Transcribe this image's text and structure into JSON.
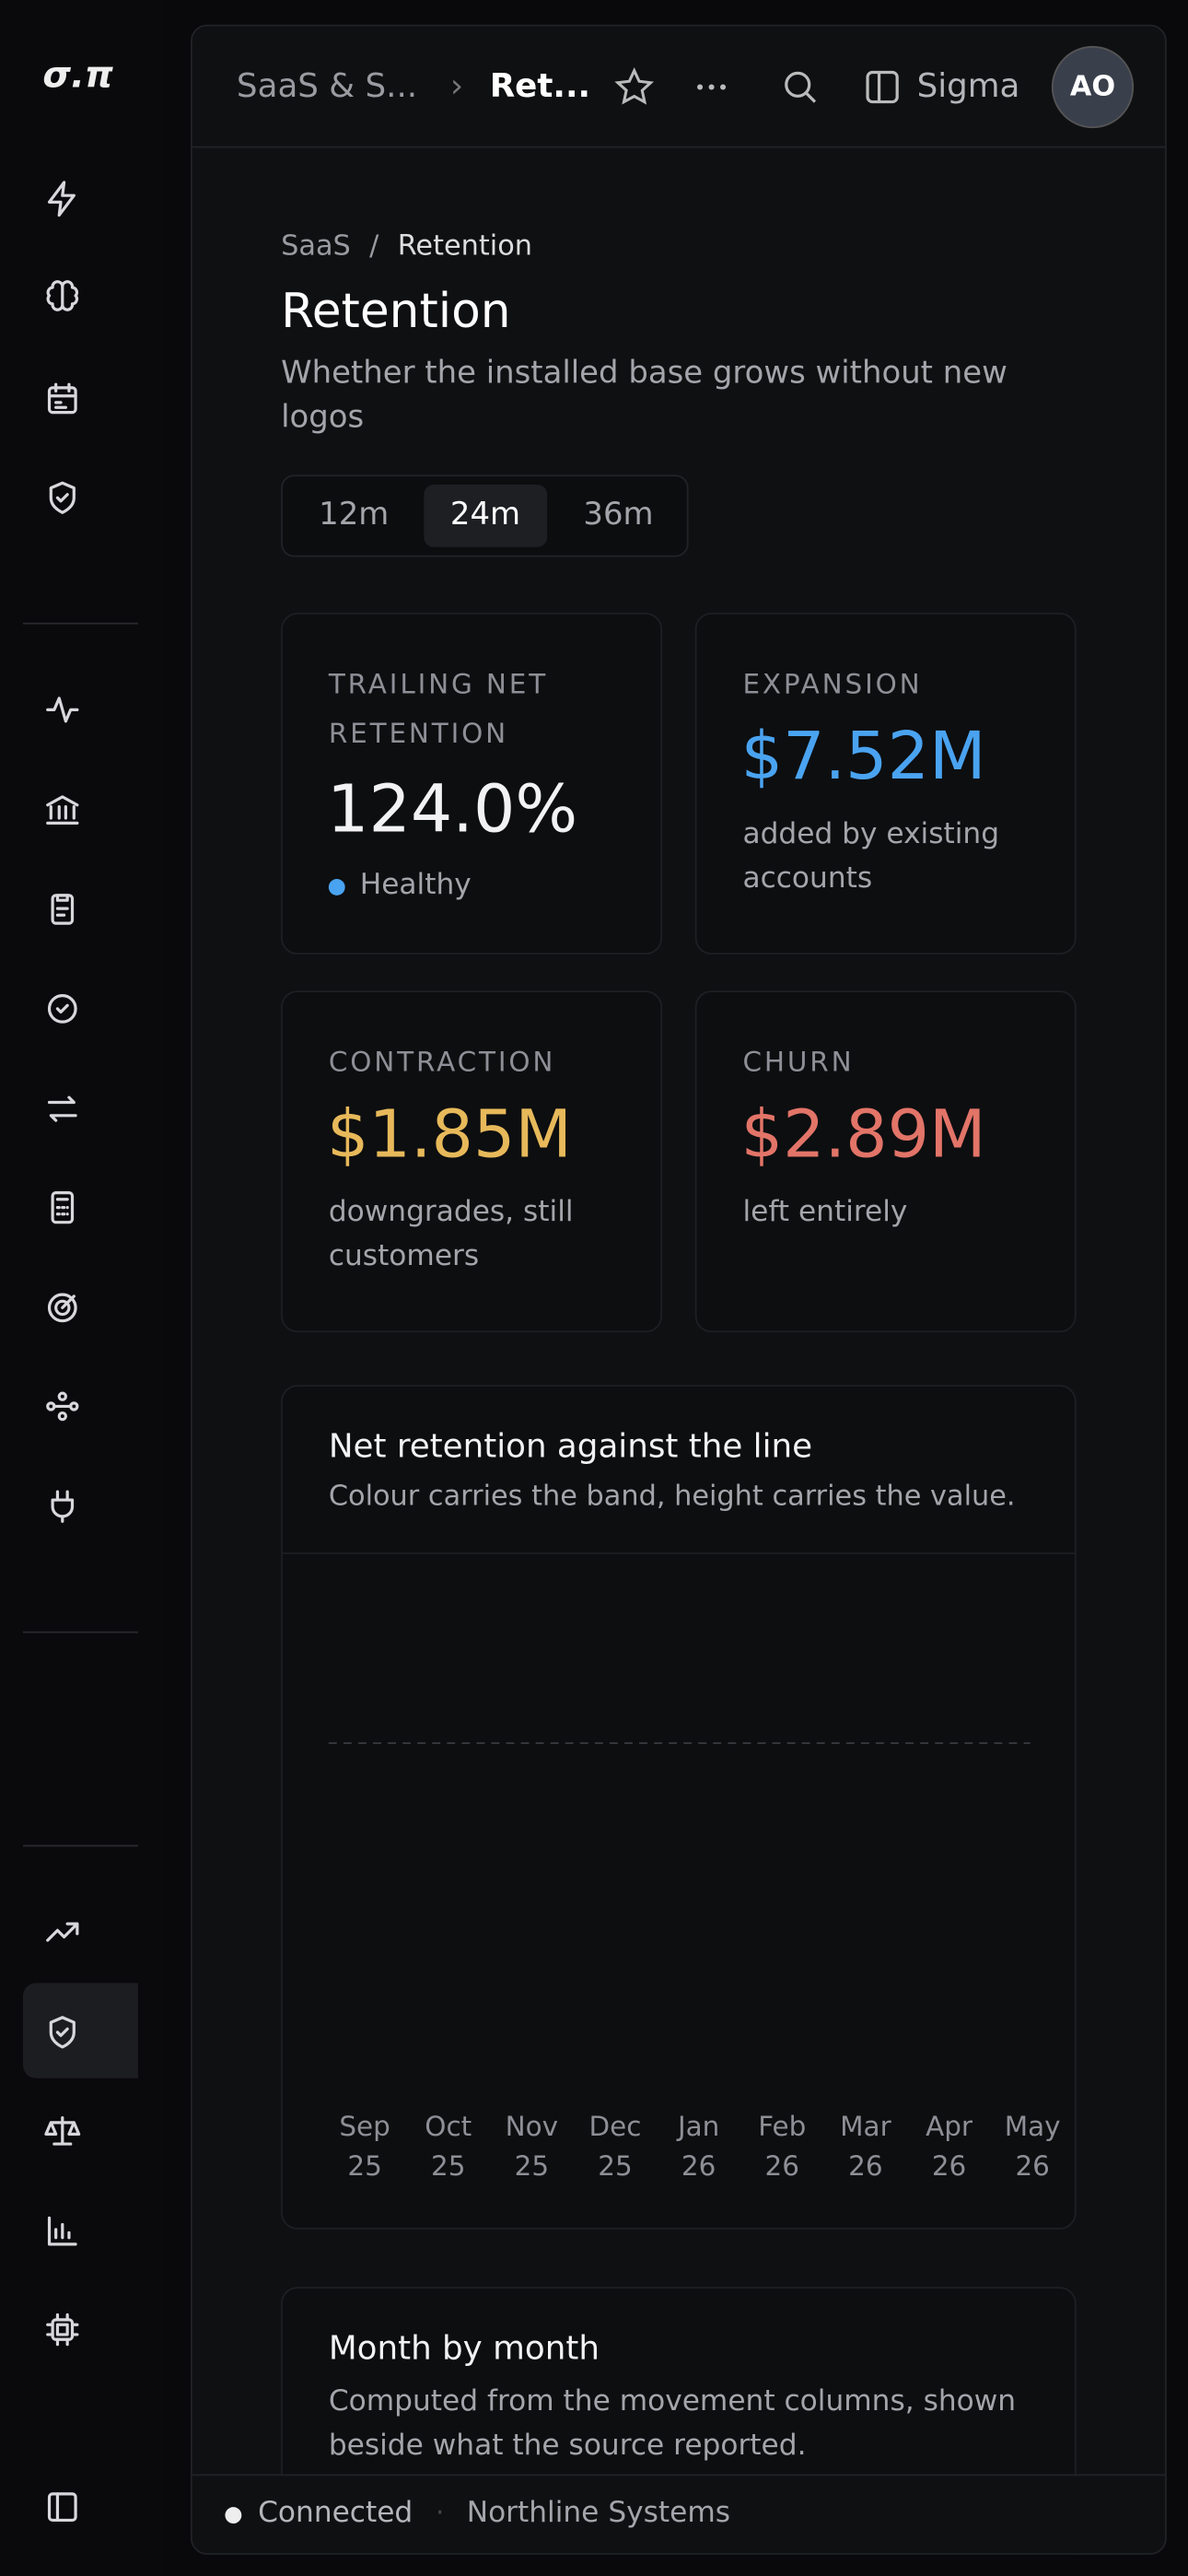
{
  "sidebar": {
    "logo": "σ.π"
  },
  "topbar": {
    "crumb_parent": "SaaS & S...",
    "crumb_current": "Ret...",
    "workspace": "Sigma",
    "avatar": "AO"
  },
  "header": {
    "breadcrumb": [
      "SaaS",
      "/",
      "Retention"
    ],
    "title": "Retention",
    "subtitle": "Whether the installed base grows without new logos"
  },
  "range": {
    "options": [
      "12m",
      "24m",
      "36m"
    ],
    "selected": "24m"
  },
  "cards": [
    {
      "label": "TRAILING NET RETENTION",
      "value": "124.0%",
      "note": "Healthy",
      "color": "#f2f2f4"
    },
    {
      "label": "EXPANSION",
      "value": "$7.52M",
      "note": "added by existing accounts",
      "color": "#4aa3f0"
    },
    {
      "label": "CONTRACTION",
      "value": "$1.85M",
      "note": "downgrades, still customers",
      "color": "#e7b95a"
    },
    {
      "label": "CHURN",
      "value": "$2.89M",
      "note": "left entirely",
      "color": "#e27468"
    }
  ],
  "chart_data": {
    "type": "bar",
    "title": "Net retention against the line",
    "subtitle": "Colour carries the band, height carries the value.",
    "categories": [
      {
        "month": "Sep",
        "year": "25"
      },
      {
        "month": "Oct",
        "year": "25"
      },
      {
        "month": "Nov",
        "year": "25"
      },
      {
        "month": "Dec",
        "year": "25"
      },
      {
        "month": "Jan",
        "year": "26"
      },
      {
        "month": "Feb",
        "year": "26"
      },
      {
        "month": "Mar",
        "year": "26"
      },
      {
        "month": "Apr",
        "year": "26"
      },
      {
        "month": "May",
        "year": "26"
      }
    ]
  },
  "table_section": {
    "title": "Month by month",
    "subtitle": "Computed from the movement columns, shown beside what the source reported."
  },
  "footer": {
    "status": "Connected",
    "separator": "·",
    "company": "Northline Systems"
  }
}
